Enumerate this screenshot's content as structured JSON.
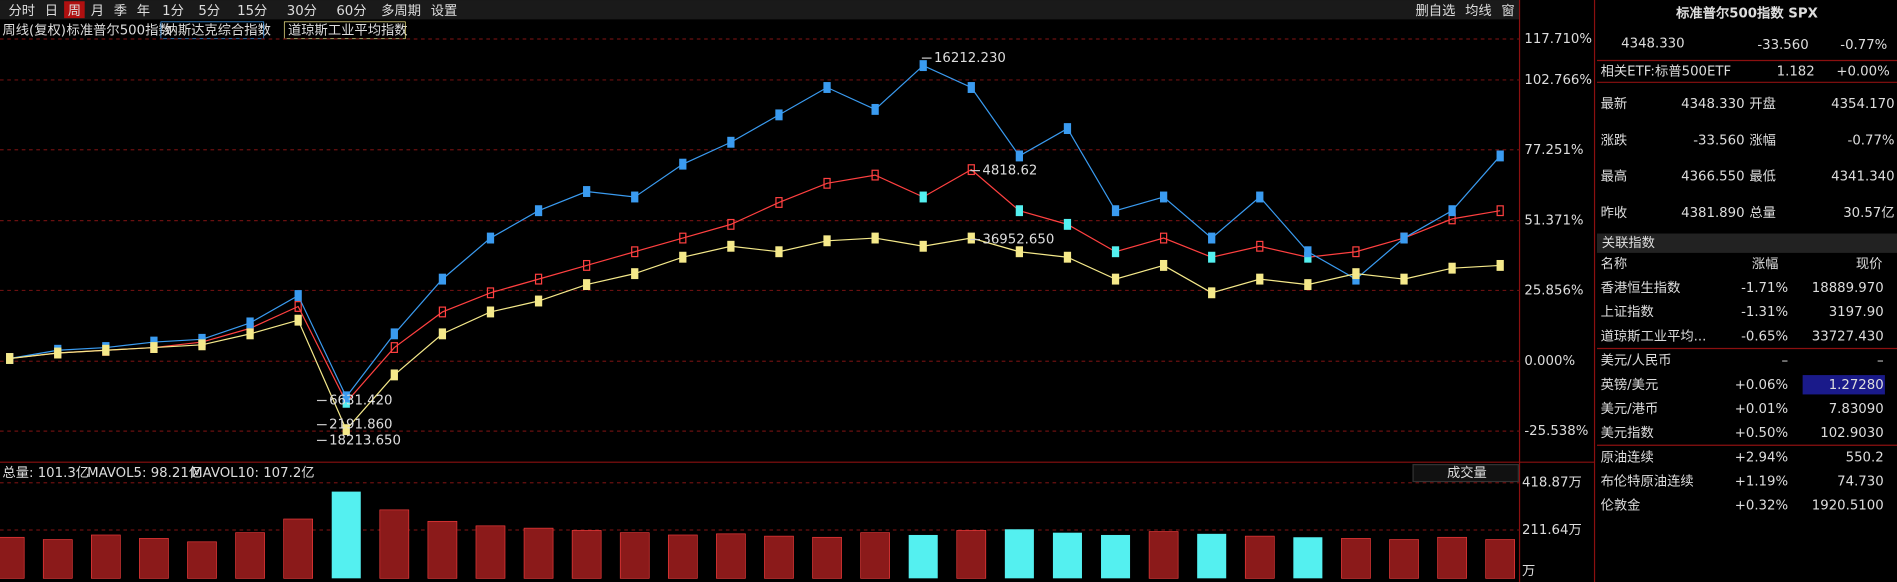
{
  "toolbar": {
    "left": [
      "分时",
      "日",
      "周",
      "月",
      "季",
      "年",
      "1分",
      "5分",
      "15分",
      "30分",
      "60分",
      "多周期",
      "设置"
    ],
    "active": "周",
    "right": [
      "删自选",
      "均线",
      "窗"
    ]
  },
  "chart_data": [
    {
      "type": "line",
      "title": "周线(复权)",
      "grid": true,
      "ylim": [
        -36,
        124
      ],
      "yticks": [
        {
          "value": 117.71,
          "label": "117.710%"
        },
        {
          "value": 102.766,
          "label": "102.766%"
        },
        {
          "value": 77.251,
          "label": "77.251%"
        },
        {
          "value": 51.371,
          "label": "51.371%"
        },
        {
          "value": 25.856,
          "label": "25.856%"
        },
        {
          "value": 0,
          "label": "0.000%"
        },
        {
          "value": -25.538,
          "label": "-25.538%"
        }
      ],
      "series": [
        {
          "name": "标准普尔500指数",
          "color": "#ff4040",
          "values": [
            1,
            3,
            4,
            5,
            7,
            12,
            20,
            -15,
            5,
            18,
            25,
            30,
            35,
            40,
            45,
            50,
            58,
            65,
            68,
            60,
            70,
            55,
            50,
            40,
            45,
            38,
            42,
            38,
            40,
            45,
            52,
            55
          ]
        },
        {
          "name": "纳斯达克综合指数",
          "color": "#3a9bf0",
          "values": [
            1,
            4,
            5,
            7,
            8,
            14,
            24,
            -13,
            10,
            30,
            45,
            55,
            62,
            60,
            72,
            80,
            90,
            100,
            92,
            108,
            100,
            75,
            85,
            55,
            60,
            45,
            60,
            40,
            30,
            45,
            55,
            75
          ]
        },
        {
          "name": "道琼斯工业平均指数",
          "color": "#f5e98a",
          "values": [
            1,
            3,
            4,
            5,
            6,
            10,
            15,
            -25,
            -5,
            10,
            18,
            22,
            28,
            32,
            38,
            42,
            40,
            44,
            45,
            42,
            45,
            40,
            38,
            30,
            35,
            25,
            30,
            28,
            32,
            30,
            34,
            35
          ]
        }
      ],
      "annotations": [
        "16212.230",
        "4818.62",
        "36952.650",
        "6631.420",
        "2191.860",
        "18213.650"
      ]
    },
    {
      "type": "bar",
      "title": "成交量",
      "total": "总量: 101.3亿",
      "mavol5": "MAVOL5: 98.21亿",
      "mavol10": "MAVOL10: 107.2亿",
      "values": [
        180,
        170,
        190,
        175,
        160,
        200,
        260,
        380,
        300,
        250,
        230,
        220,
        210,
        200,
        190,
        195,
        185,
        180,
        200,
        190,
        210,
        215,
        200,
        190,
        205,
        195,
        185,
        180,
        175,
        170,
        180,
        170
      ],
      "ylim": [
        0,
        493
      ],
      "yticks": [
        {
          "value": 418.87,
          "label": "418.87万"
        },
        {
          "value": 211.64,
          "label": "211.64万"
        }
      ],
      "unit": "万"
    }
  ],
  "quote": {
    "title": "标准普尔500指数 SPX",
    "price": "4348.330",
    "change": "-33.560",
    "pct": "-0.77%"
  },
  "etf": {
    "label": "相关ETF:",
    "name": "标普500ETF",
    "price": "1.182",
    "pct": "+0.00%"
  },
  "stats": [
    [
      "最新",
      "4348.330",
      "开盘",
      "4354.170"
    ],
    [
      "涨跌",
      "-33.560",
      "涨幅",
      "-0.77%"
    ],
    [
      "最高",
      "4366.550",
      "最低",
      "4341.340"
    ],
    [
      "昨收",
      "4381.890",
      "总量",
      "30.57亿"
    ]
  ],
  "related": {
    "title": "关联指数",
    "header": [
      "名称",
      "涨幅",
      "现价"
    ],
    "rows": [
      [
        "香港恒生指数",
        "-1.71%",
        "18889.970"
      ],
      [
        "上证指数",
        "-1.31%",
        "3197.90"
      ],
      [
        "道琼斯工业平均...",
        "-0.65%",
        "33727.430"
      ],
      [
        "美元/人民币",
        "–",
        "–"
      ],
      [
        "英镑/美元",
        "+0.06%",
        "1.27280"
      ],
      [
        "美元/港币",
        "+0.01%",
        "7.83090"
      ],
      [
        "美元指数",
        "+0.50%",
        "102.9030"
      ],
      [
        "原油连续",
        "+2.94%",
        "550.2"
      ],
      [
        "布伦特原油连续",
        "+1.19%",
        "74.730"
      ],
      [
        "伦敦金",
        "+0.32%",
        "1920.5100"
      ]
    ]
  }
}
